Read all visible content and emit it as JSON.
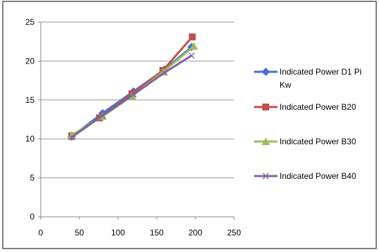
{
  "chart_data": {
    "type": "line",
    "title": "",
    "xlabel": "",
    "ylabel": "",
    "xlim": [
      0,
      250
    ],
    "ylim": [
      0,
      25
    ],
    "xticks": [
      "0",
      "50",
      "100",
      "150",
      "200",
      "250"
    ],
    "yticks": [
      "0",
      "5",
      "10",
      "15",
      "20",
      "25"
    ],
    "grid": "horizontal",
    "legend_position": "right",
    "series": [
      {
        "name": "Indicated Power D1 Pi Kw",
        "color": "#4472C4",
        "marker": "diamond",
        "x": [
          40,
          80,
          120,
          160,
          195
        ],
        "y": [
          10.3,
          13.3,
          16.1,
          18.9,
          21.8
        ]
      },
      {
        "name": "Indicated Power B20",
        "color": "#C0504D",
        "marker": "square",
        "x": [
          40,
          76,
          118,
          158,
          196
        ],
        "y": [
          10.4,
          12.7,
          15.8,
          18.8,
          23.1
        ]
      },
      {
        "name": "Indicated Power B30",
        "color": "#9BBB59",
        "marker": "triangle",
        "x": [
          40,
          80,
          118,
          158,
          198
        ],
        "y": [
          10.5,
          12.9,
          15.5,
          18.6,
          21.9
        ]
      },
      {
        "name": "Indicated Power B40",
        "color": "#8064A2",
        "marker": "x",
        "x": [
          40,
          80,
          120,
          160,
          195
        ],
        "y": [
          10.2,
          13.0,
          15.7,
          18.5,
          20.7
        ]
      }
    ]
  }
}
